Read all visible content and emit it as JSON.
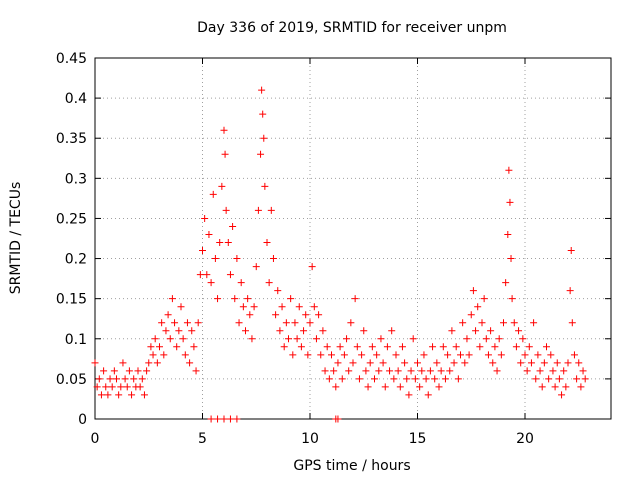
{
  "chart_data": {
    "type": "scatter",
    "title": "Day 336 of 2019, SRMTID for receiver unpm",
    "xlabel": "GPS time / hours",
    "ylabel": "SRMTID / TECUs",
    "xlim": [
      0,
      24
    ],
    "ylim": [
      0,
      0.45
    ],
    "xticks": [
      0,
      5,
      10,
      15,
      20
    ],
    "xtick_labels": [
      "0",
      "5",
      "10",
      "15",
      "20"
    ],
    "yticks": [
      0,
      0.05,
      0.1,
      0.15,
      0.2,
      0.25,
      0.3,
      0.35,
      0.4,
      0.45
    ],
    "ytick_labels": [
      "0",
      "0.05",
      "0.1",
      "0.15",
      "0.2",
      "0.25",
      "0.3",
      "0.35",
      "0.4",
      "0.45"
    ],
    "grid": true,
    "marker": "+",
    "series": [
      {
        "name": "SRMTID",
        "color": "#ff0000",
        "points": [
          [
            0.0,
            0.07
          ],
          [
            0.1,
            0.04
          ],
          [
            0.2,
            0.05
          ],
          [
            0.3,
            0.03
          ],
          [
            0.4,
            0.06
          ],
          [
            0.5,
            0.04
          ],
          [
            0.6,
            0.03
          ],
          [
            0.7,
            0.05
          ],
          [
            0.8,
            0.04
          ],
          [
            0.9,
            0.06
          ],
          [
            1.0,
            0.05
          ],
          [
            1.1,
            0.03
          ],
          [
            1.2,
            0.04
          ],
          [
            1.3,
            0.07
          ],
          [
            1.4,
            0.05
          ],
          [
            1.5,
            0.04
          ],
          [
            1.6,
            0.06
          ],
          [
            1.7,
            0.03
          ],
          [
            1.8,
            0.05
          ],
          [
            1.9,
            0.04
          ],
          [
            2.0,
            0.06
          ],
          [
            2.1,
            0.04
          ],
          [
            2.2,
            0.05
          ],
          [
            2.3,
            0.03
          ],
          [
            2.4,
            0.06
          ],
          [
            2.5,
            0.07
          ],
          [
            2.6,
            0.09
          ],
          [
            2.7,
            0.08
          ],
          [
            2.8,
            0.1
          ],
          [
            2.9,
            0.07
          ],
          [
            3.0,
            0.09
          ],
          [
            3.1,
            0.12
          ],
          [
            3.2,
            0.08
          ],
          [
            3.3,
            0.11
          ],
          [
            3.4,
            0.13
          ],
          [
            3.5,
            0.1
          ],
          [
            3.6,
            0.15
          ],
          [
            3.7,
            0.12
          ],
          [
            3.8,
            0.09
          ],
          [
            3.9,
            0.11
          ],
          [
            4.0,
            0.14
          ],
          [
            4.1,
            0.1
          ],
          [
            4.2,
            0.08
          ],
          [
            4.3,
            0.12
          ],
          [
            4.4,
            0.07
          ],
          [
            4.5,
            0.11
          ],
          [
            4.6,
            0.09
          ],
          [
            4.7,
            0.06
          ],
          [
            4.8,
            0.12
          ],
          [
            4.9,
            0.18
          ],
          [
            5.0,
            0.21
          ],
          [
            5.1,
            0.25
          ],
          [
            5.2,
            0.18
          ],
          [
            5.3,
            0.23
          ],
          [
            5.4,
            0.17
          ],
          [
            5.5,
            0.28
          ],
          [
            5.6,
            0.2
          ],
          [
            5.7,
            0.15
          ],
          [
            5.8,
            0.22
          ],
          [
            5.9,
            0.29
          ],
          [
            6.0,
            0.36
          ],
          [
            6.05,
            0.33
          ],
          [
            6.1,
            0.26
          ],
          [
            6.2,
            0.22
          ],
          [
            6.3,
            0.18
          ],
          [
            6.4,
            0.24
          ],
          [
            6.5,
            0.15
          ],
          [
            6.6,
            0.2
          ],
          [
            6.7,
            0.12
          ],
          [
            6.8,
            0.17
          ],
          [
            6.9,
            0.14
          ],
          [
            7.0,
            0.11
          ],
          [
            7.1,
            0.15
          ],
          [
            7.2,
            0.13
          ],
          [
            7.3,
            0.1
          ],
          [
            7.4,
            0.14
          ],
          [
            7.5,
            0.19
          ],
          [
            7.6,
            0.26
          ],
          [
            7.7,
            0.33
          ],
          [
            7.75,
            0.41
          ],
          [
            7.8,
            0.38
          ],
          [
            7.85,
            0.35
          ],
          [
            7.9,
            0.29
          ],
          [
            8.0,
            0.22
          ],
          [
            8.1,
            0.17
          ],
          [
            8.2,
            0.26
          ],
          [
            8.3,
            0.2
          ],
          [
            8.4,
            0.13
          ],
          [
            8.5,
            0.16
          ],
          [
            8.6,
            0.11
          ],
          [
            8.7,
            0.14
          ],
          [
            8.8,
            0.09
          ],
          [
            8.9,
            0.12
          ],
          [
            9.0,
            0.1
          ],
          [
            9.1,
            0.15
          ],
          [
            9.2,
            0.08
          ],
          [
            9.3,
            0.12
          ],
          [
            9.4,
            0.1
          ],
          [
            9.5,
            0.14
          ],
          [
            9.6,
            0.09
          ],
          [
            9.7,
            0.11
          ],
          [
            9.8,
            0.13
          ],
          [
            9.9,
            0.08
          ],
          [
            10.0,
            0.12
          ],
          [
            10.1,
            0.19
          ],
          [
            10.2,
            0.14
          ],
          [
            10.3,
            0.1
          ],
          [
            10.4,
            0.13
          ],
          [
            10.5,
            0.08
          ],
          [
            10.6,
            0.11
          ],
          [
            10.7,
            0.06
          ],
          [
            10.8,
            0.09
          ],
          [
            10.9,
            0.05
          ],
          [
            11.0,
            0.08
          ],
          [
            11.1,
            0.06
          ],
          [
            11.2,
            0.04
          ],
          [
            11.3,
            0.07
          ],
          [
            11.4,
            0.09
          ],
          [
            11.5,
            0.05
          ],
          [
            11.6,
            0.08
          ],
          [
            11.7,
            0.1
          ],
          [
            11.8,
            0.06
          ],
          [
            11.9,
            0.12
          ],
          [
            12.0,
            0.07
          ],
          [
            12.1,
            0.15
          ],
          [
            12.2,
            0.09
          ],
          [
            12.3,
            0.05
          ],
          [
            12.4,
            0.08
          ],
          [
            12.5,
            0.11
          ],
          [
            12.6,
            0.06
          ],
          [
            12.7,
            0.04
          ],
          [
            12.8,
            0.07
          ],
          [
            12.9,
            0.09
          ],
          [
            13.0,
            0.05
          ],
          [
            13.1,
            0.08
          ],
          [
            13.2,
            0.06
          ],
          [
            13.3,
            0.1
          ],
          [
            13.4,
            0.07
          ],
          [
            13.5,
            0.04
          ],
          [
            13.6,
            0.09
          ],
          [
            13.7,
            0.06
          ],
          [
            13.8,
            0.11
          ],
          [
            13.9,
            0.05
          ],
          [
            14.0,
            0.08
          ],
          [
            14.1,
            0.06
          ],
          [
            14.2,
            0.04
          ],
          [
            14.3,
            0.09
          ],
          [
            14.4,
            0.07
          ],
          [
            14.5,
            0.05
          ],
          [
            14.6,
            0.03
          ],
          [
            14.7,
            0.06
          ],
          [
            14.8,
            0.1
          ],
          [
            14.9,
            0.05
          ],
          [
            15.0,
            0.07
          ],
          [
            15.1,
            0.04
          ],
          [
            15.2,
            0.06
          ],
          [
            15.3,
            0.08
          ],
          [
            15.4,
            0.05
          ],
          [
            15.5,
            0.03
          ],
          [
            15.6,
            0.06
          ],
          [
            15.7,
            0.09
          ],
          [
            15.8,
            0.05
          ],
          [
            15.9,
            0.07
          ],
          [
            16.0,
            0.04
          ],
          [
            16.1,
            0.06
          ],
          [
            16.2,
            0.09
          ],
          [
            16.3,
            0.05
          ],
          [
            16.4,
            0.08
          ],
          [
            16.5,
            0.06
          ],
          [
            16.6,
            0.11
          ],
          [
            16.7,
            0.07
          ],
          [
            16.8,
            0.09
          ],
          [
            16.9,
            0.05
          ],
          [
            17.0,
            0.08
          ],
          [
            17.1,
            0.12
          ],
          [
            17.2,
            0.07
          ],
          [
            17.3,
            0.1
          ],
          [
            17.4,
            0.08
          ],
          [
            17.5,
            0.13
          ],
          [
            17.6,
            0.16
          ],
          [
            17.7,
            0.11
          ],
          [
            17.8,
            0.14
          ],
          [
            17.9,
            0.09
          ],
          [
            18.0,
            0.12
          ],
          [
            18.1,
            0.15
          ],
          [
            18.2,
            0.1
          ],
          [
            18.3,
            0.08
          ],
          [
            18.4,
            0.11
          ],
          [
            18.5,
            0.07
          ],
          [
            18.6,
            0.09
          ],
          [
            18.7,
            0.06
          ],
          [
            18.8,
            0.1
          ],
          [
            18.9,
            0.08
          ],
          [
            19.0,
            0.12
          ],
          [
            19.1,
            0.17
          ],
          [
            19.2,
            0.23
          ],
          [
            19.25,
            0.31
          ],
          [
            19.3,
            0.27
          ],
          [
            19.35,
            0.2
          ],
          [
            19.4,
            0.15
          ],
          [
            19.5,
            0.12
          ],
          [
            19.6,
            0.09
          ],
          [
            19.7,
            0.11
          ],
          [
            19.8,
            0.07
          ],
          [
            19.9,
            0.1
          ],
          [
            20.0,
            0.08
          ],
          [
            20.1,
            0.06
          ],
          [
            20.2,
            0.09
          ],
          [
            20.3,
            0.07
          ],
          [
            20.4,
            0.12
          ],
          [
            20.5,
            0.05
          ],
          [
            20.6,
            0.08
          ],
          [
            20.7,
            0.06
          ],
          [
            20.8,
            0.04
          ],
          [
            20.9,
            0.07
          ],
          [
            21.0,
            0.09
          ],
          [
            21.1,
            0.05
          ],
          [
            21.2,
            0.08
          ],
          [
            21.3,
            0.06
          ],
          [
            21.4,
            0.04
          ],
          [
            21.5,
            0.07
          ],
          [
            21.6,
            0.05
          ],
          [
            21.7,
            0.03
          ],
          [
            21.8,
            0.06
          ],
          [
            21.9,
            0.04
          ],
          [
            22.0,
            0.07
          ],
          [
            22.1,
            0.16
          ],
          [
            22.15,
            0.21
          ],
          [
            22.2,
            0.12
          ],
          [
            22.3,
            0.08
          ],
          [
            22.4,
            0.05
          ],
          [
            22.5,
            0.07
          ],
          [
            22.6,
            0.04
          ],
          [
            22.7,
            0.06
          ],
          [
            22.8,
            0.05
          ],
          [
            5.4,
            0.0
          ],
          [
            5.7,
            0.0
          ],
          [
            6.0,
            0.0
          ],
          [
            6.3,
            0.0
          ],
          [
            6.6,
            0.0
          ],
          [
            11.2,
            0.0
          ],
          [
            11.3,
            0.0
          ]
        ]
      }
    ]
  }
}
